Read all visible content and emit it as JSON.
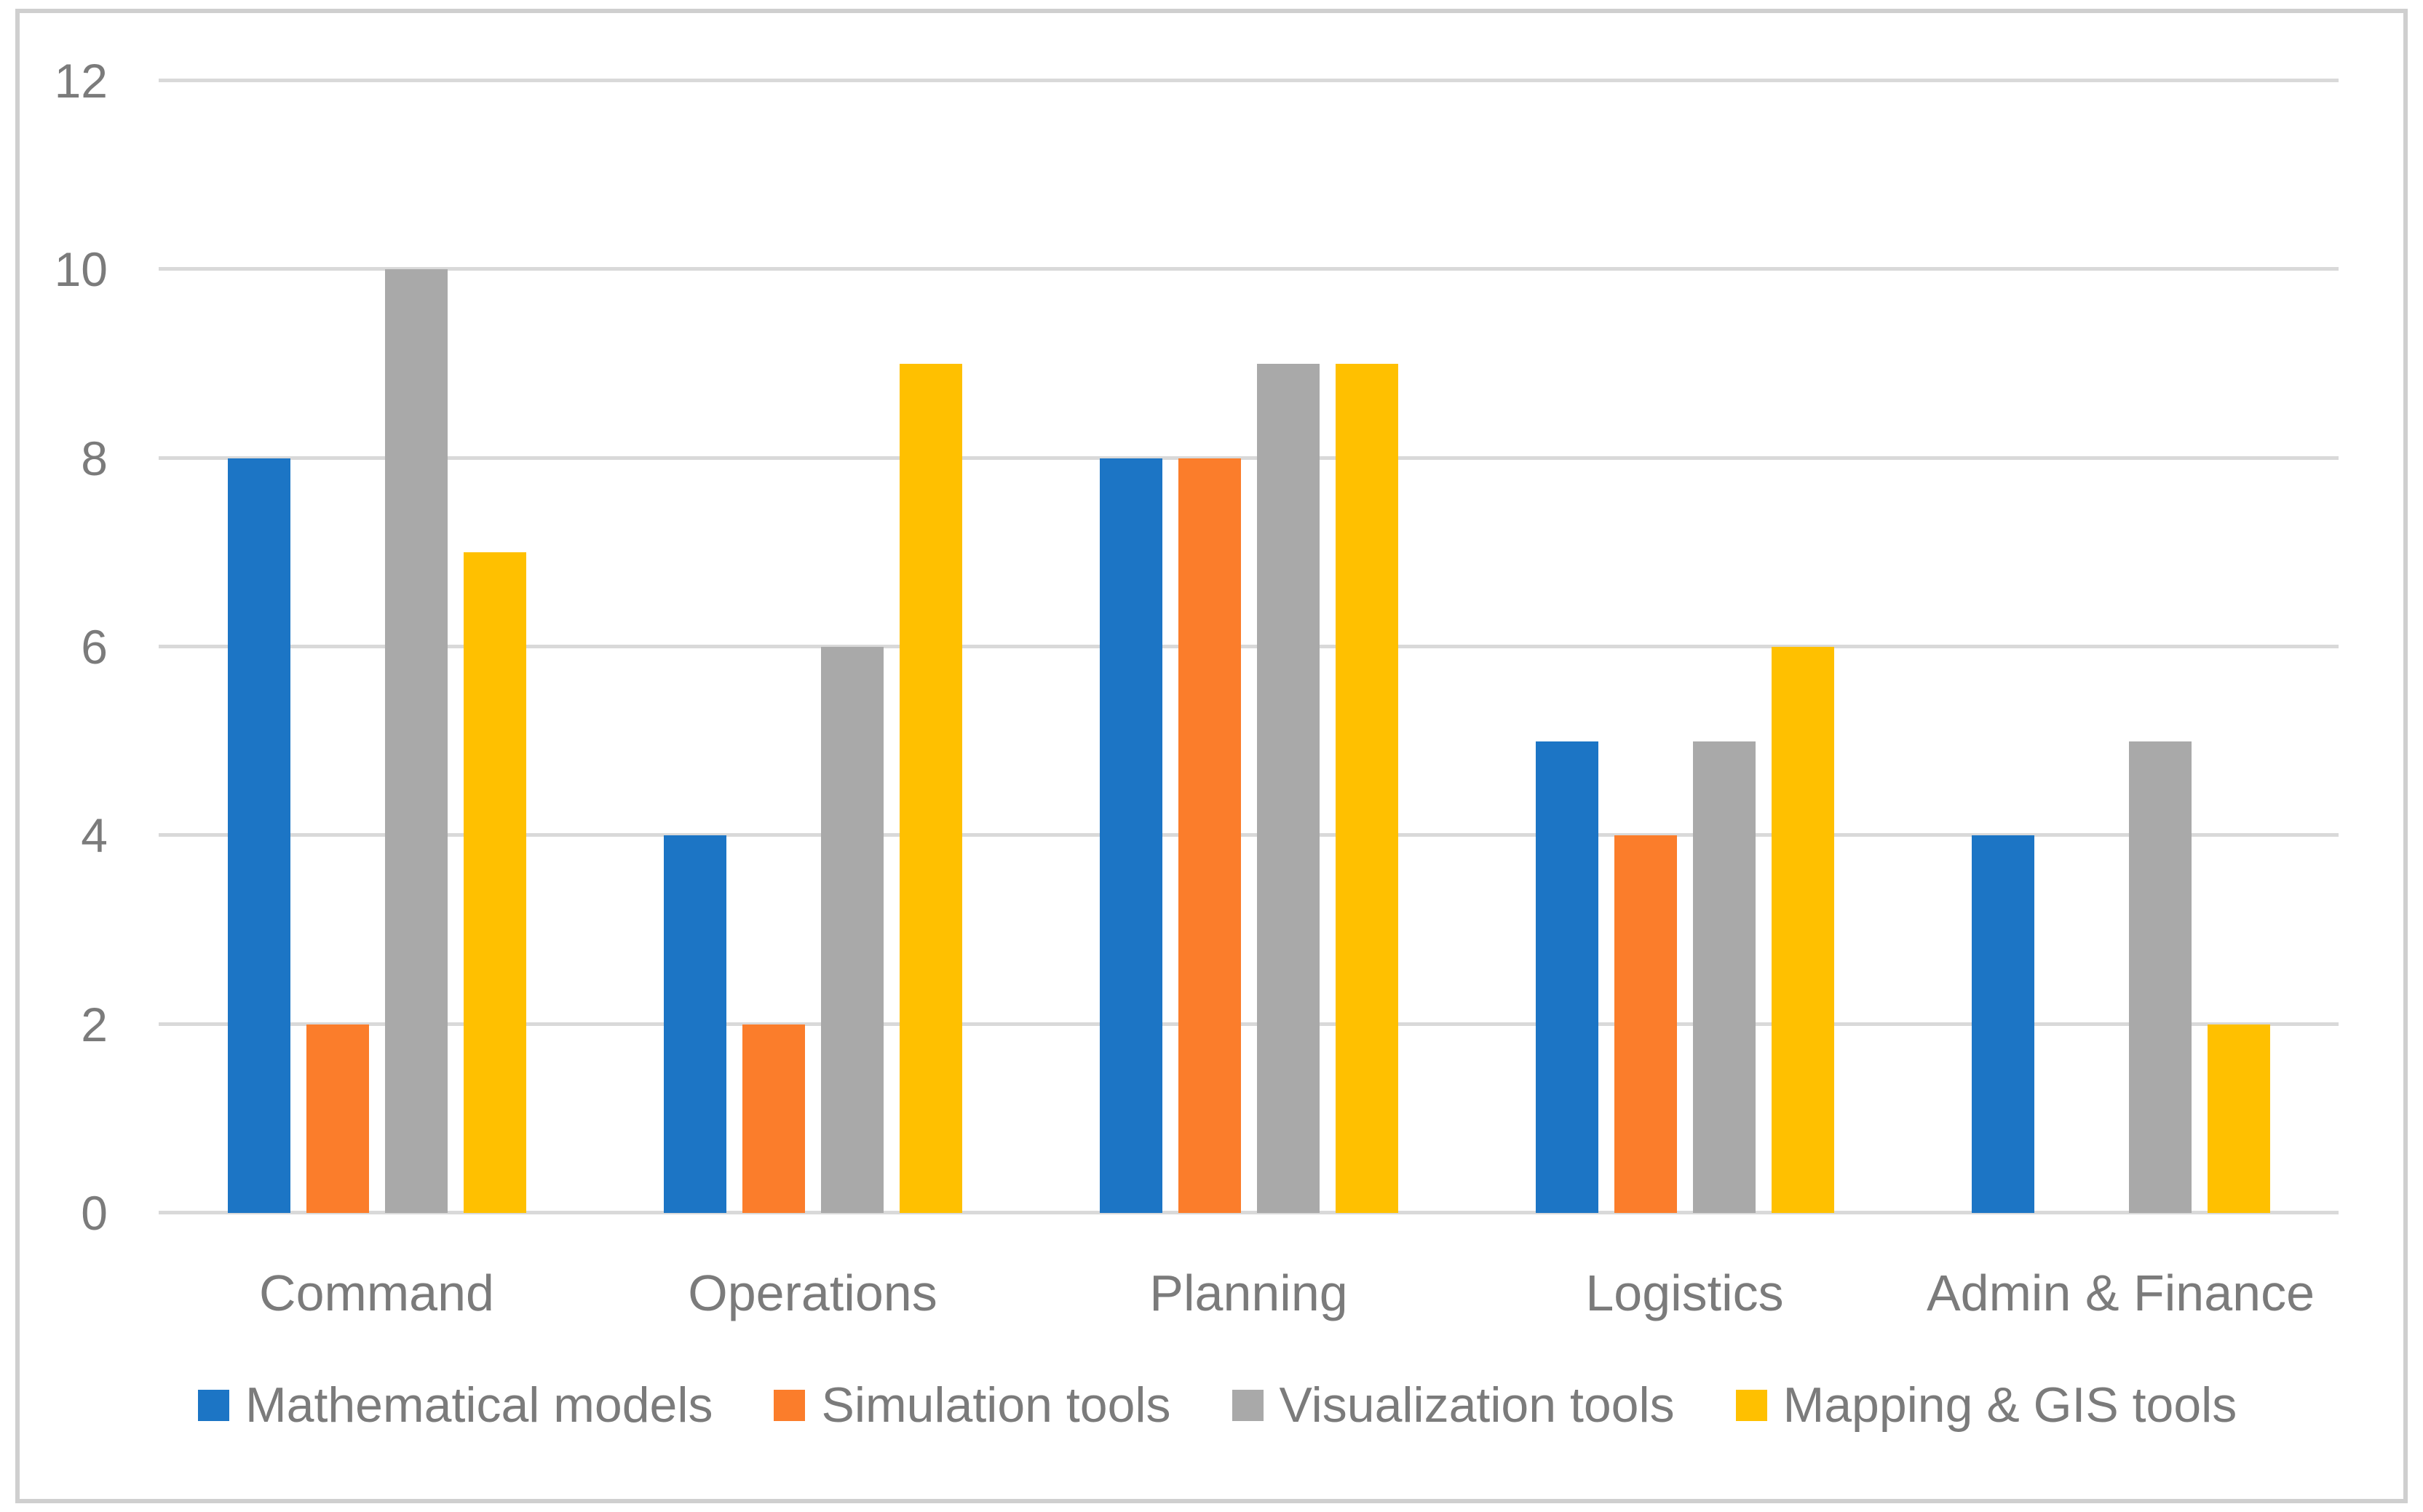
{
  "chart_data": {
    "type": "bar",
    "title": "",
    "categories": [
      "Command",
      "Operations",
      "Planning",
      "Logistics",
      "Admin & Finance"
    ],
    "series": [
      {
        "name": "Mathematical models",
        "color": "#1C75C5",
        "values": [
          8,
          4,
          8,
          5,
          4
        ]
      },
      {
        "name": "Simulation tools",
        "color": "#FB7D2B",
        "values": [
          2,
          2,
          8,
          4,
          0
        ]
      },
      {
        "name": "Visualization tools",
        "color": "#A9A9A9",
        "values": [
          10,
          6,
          9,
          5,
          5
        ]
      },
      {
        "name": "Mapping & GIS tools",
        "color": "#FFC000",
        "values": [
          7,
          9,
          9,
          6,
          2
        ]
      }
    ],
    "ylim": [
      0,
      12
    ],
    "yticks": [
      0,
      2,
      4,
      6,
      8,
      10,
      12
    ],
    "xlabel": "",
    "ylabel": "",
    "grid": "horizontal",
    "legend_position": "bottom"
  },
  "colors": {
    "background": "#FFFFFF",
    "frame_border": "#CFCFCF",
    "gridline": "#D9D9D9",
    "axis_text": "#7B7B7B"
  }
}
